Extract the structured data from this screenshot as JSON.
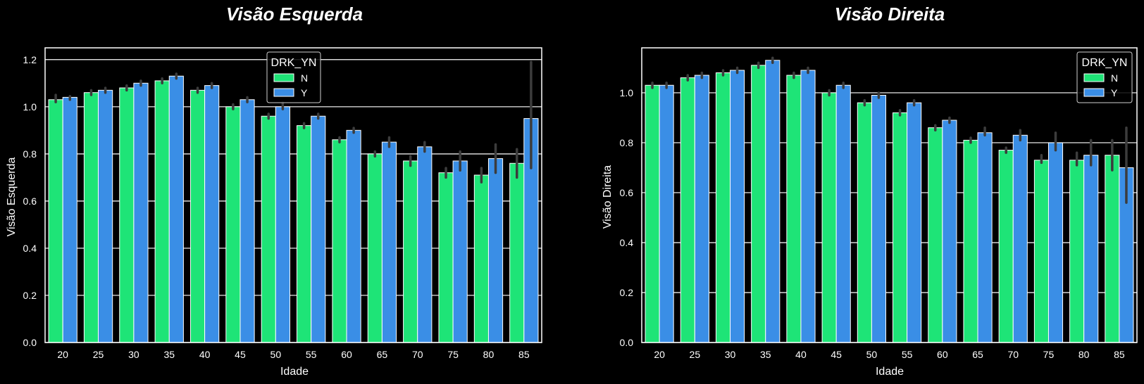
{
  "chart_data": [
    {
      "type": "bar",
      "title": "Visão Esquerda",
      "xlabel": "Idade",
      "ylabel": "Visão Esquerda",
      "ylim": [
        0,
        1.25
      ],
      "yticks": [
        "0.0",
        "0.2",
        "0.4",
        "0.6",
        "0.8",
        "1.0",
        "1.2"
      ],
      "grid": true,
      "legend_placement": "upper-center",
      "legend_title": "DRK_YN",
      "categories": [
        "20",
        "25",
        "30",
        "35",
        "40",
        "45",
        "50",
        "55",
        "60",
        "65",
        "70",
        "75",
        "80",
        "85"
      ],
      "series": [
        {
          "name": "N",
          "color": "#1ee477",
          "values": [
            1.03,
            1.06,
            1.08,
            1.11,
            1.07,
            1.0,
            0.96,
            0.92,
            0.86,
            0.8,
            0.77,
            0.72,
            0.71,
            0.76
          ],
          "err_low": [
            1.02,
            1.05,
            1.07,
            1.1,
            1.06,
            0.99,
            0.95,
            0.91,
            0.85,
            0.79,
            0.75,
            0.7,
            0.68,
            0.7
          ],
          "err_high": [
            1.05,
            1.07,
            1.09,
            1.12,
            1.08,
            1.01,
            0.97,
            0.93,
            0.87,
            0.81,
            0.79,
            0.74,
            0.74,
            0.82
          ]
        },
        {
          "name": "Y",
          "color": "#3a8ee6",
          "values": [
            1.04,
            1.07,
            1.1,
            1.13,
            1.09,
            1.03,
            1.0,
            0.96,
            0.9,
            0.85,
            0.83,
            0.77,
            0.78,
            0.95
          ],
          "err_low": [
            1.03,
            1.06,
            1.09,
            1.12,
            1.08,
            1.02,
            0.99,
            0.95,
            0.89,
            0.83,
            0.81,
            0.73,
            0.72,
            0.74
          ],
          "err_high": [
            1.045,
            1.08,
            1.11,
            1.14,
            1.1,
            1.04,
            1.02,
            0.97,
            0.91,
            0.87,
            0.85,
            0.81,
            0.84,
            1.19
          ]
        }
      ]
    },
    {
      "type": "bar",
      "title": "Visão Direita",
      "xlabel": "Idade",
      "ylabel": "Visão Direita",
      "ylim": [
        0,
        1.18
      ],
      "yticks": [
        "0.0",
        "0.2",
        "0.4",
        "0.6",
        "0.8",
        "1.0"
      ],
      "grid": true,
      "legend_placement": "upper-right",
      "legend_title": "DRK_YN",
      "categories": [
        "20",
        "25",
        "30",
        "35",
        "40",
        "45",
        "50",
        "55",
        "60",
        "65",
        "70",
        "75",
        "80",
        "85"
      ],
      "series": [
        {
          "name": "N",
          "color": "#1ee477",
          "values": [
            1.03,
            1.06,
            1.08,
            1.11,
            1.07,
            1.0,
            0.96,
            0.92,
            0.86,
            0.81,
            0.77,
            0.73,
            0.73,
            0.75
          ],
          "err_low": [
            1.02,
            1.05,
            1.07,
            1.1,
            1.06,
            0.99,
            0.95,
            0.91,
            0.85,
            0.8,
            0.76,
            0.72,
            0.71,
            0.69
          ],
          "err_high": [
            1.04,
            1.07,
            1.09,
            1.12,
            1.08,
            1.01,
            0.97,
            0.93,
            0.87,
            0.82,
            0.78,
            0.75,
            0.76,
            0.81
          ]
        },
        {
          "name": "Y",
          "color": "#3a8ee6",
          "values": [
            1.03,
            1.07,
            1.09,
            1.13,
            1.09,
            1.03,
            0.99,
            0.96,
            0.89,
            0.84,
            0.83,
            0.8,
            0.75,
            0.7
          ],
          "err_low": [
            1.02,
            1.06,
            1.08,
            1.12,
            1.08,
            1.02,
            0.98,
            0.95,
            0.88,
            0.83,
            0.81,
            0.77,
            0.71,
            0.56
          ],
          "err_high": [
            1.04,
            1.08,
            1.1,
            1.14,
            1.1,
            1.04,
            1.0,
            0.97,
            0.9,
            0.86,
            0.85,
            0.84,
            0.81,
            0.86
          ]
        }
      ]
    }
  ]
}
